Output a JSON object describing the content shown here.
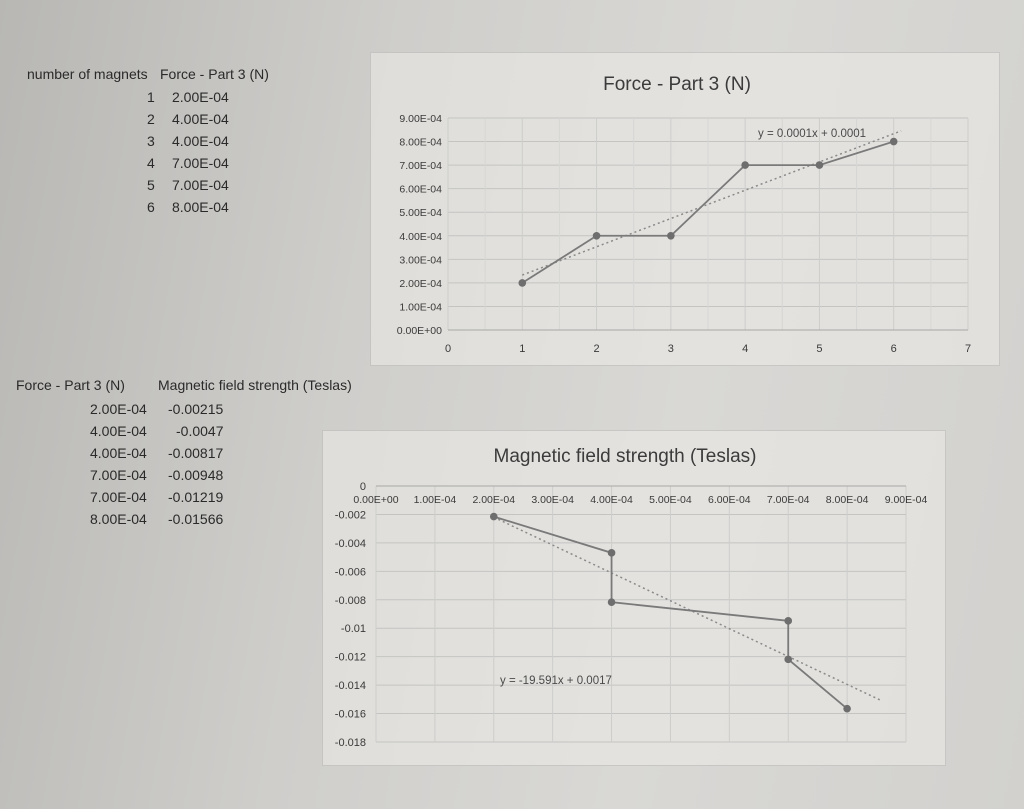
{
  "table1": {
    "headers": [
      "number of magnets",
      "Force - Part 3 (N)"
    ],
    "rows": [
      [
        "1",
        "2.00E-04"
      ],
      [
        "2",
        "4.00E-04"
      ],
      [
        "3",
        "4.00E-04"
      ],
      [
        "4",
        "7.00E-04"
      ],
      [
        "5",
        "7.00E-04"
      ],
      [
        "6",
        "8.00E-04"
      ]
    ]
  },
  "table2": {
    "headers": [
      "Force - Part 3 (N)",
      "Magnetic field strength (Teslas)"
    ],
    "rows": [
      [
        "2.00E-04",
        "-0.00215"
      ],
      [
        "4.00E-04",
        "-0.0047"
      ],
      [
        "4.00E-04",
        "-0.00817"
      ],
      [
        "7.00E-04",
        "-0.00948"
      ],
      [
        "7.00E-04",
        "-0.01219"
      ],
      [
        "8.00E-04",
        "-0.01566"
      ]
    ]
  },
  "chart_data": [
    {
      "type": "line",
      "title": "Force - Part 3 (N)",
      "x": [
        1,
        2,
        3,
        4,
        5,
        6
      ],
      "series": [
        {
          "values": [
            0.0002,
            0.0004,
            0.0004,
            0.0007,
            0.0007,
            0.0008
          ]
        }
      ],
      "trendline": {
        "label": "y = 0.0001x + 0.0001",
        "style": "dotted"
      },
      "xlim": [
        0,
        7
      ],
      "ylim": [
        0,
        0.0009
      ],
      "xticks": [
        "0",
        "1",
        "2",
        "3",
        "4",
        "5",
        "6",
        "7"
      ],
      "yticks": [
        "0.00E+00",
        "1.00E-04",
        "2.00E-04",
        "3.00E-04",
        "4.00E-04",
        "5.00E-04",
        "6.00E-04",
        "7.00E-04",
        "8.00E-04",
        "9.00E-04"
      ],
      "grid": true,
      "line_color": "#7a7a7a",
      "marker_color": "#6e6e6e"
    },
    {
      "type": "line",
      "title": "Magnetic field strength (Teslas)",
      "x": [
        0.0002,
        0.0004,
        0.0004,
        0.0007,
        0.0007,
        0.0008
      ],
      "series": [
        {
          "values": [
            -0.00215,
            -0.0047,
            -0.00817,
            -0.00948,
            -0.01219,
            -0.01566
          ]
        }
      ],
      "trendline": {
        "label": "y = -19.591x + 0.0017",
        "style": "dotted"
      },
      "xlim": [
        0,
        0.0009
      ],
      "ylim": [
        -0.018,
        0
      ],
      "xticks": [
        "0.00E+00",
        "1.00E-04",
        "2.00E-04",
        "3.00E-04",
        "4.00E-04",
        "5.00E-04",
        "6.00E-04",
        "7.00E-04",
        "8.00E-04",
        "9.00E-04"
      ],
      "yticks": [
        "0",
        "-0.002",
        "-0.004",
        "-0.006",
        "-0.008",
        "-0.01",
        "-0.012",
        "-0.014",
        "-0.016",
        "-0.018"
      ],
      "grid": true,
      "line_color": "#7a7a7a",
      "marker_color": "#6e6e6e"
    }
  ]
}
